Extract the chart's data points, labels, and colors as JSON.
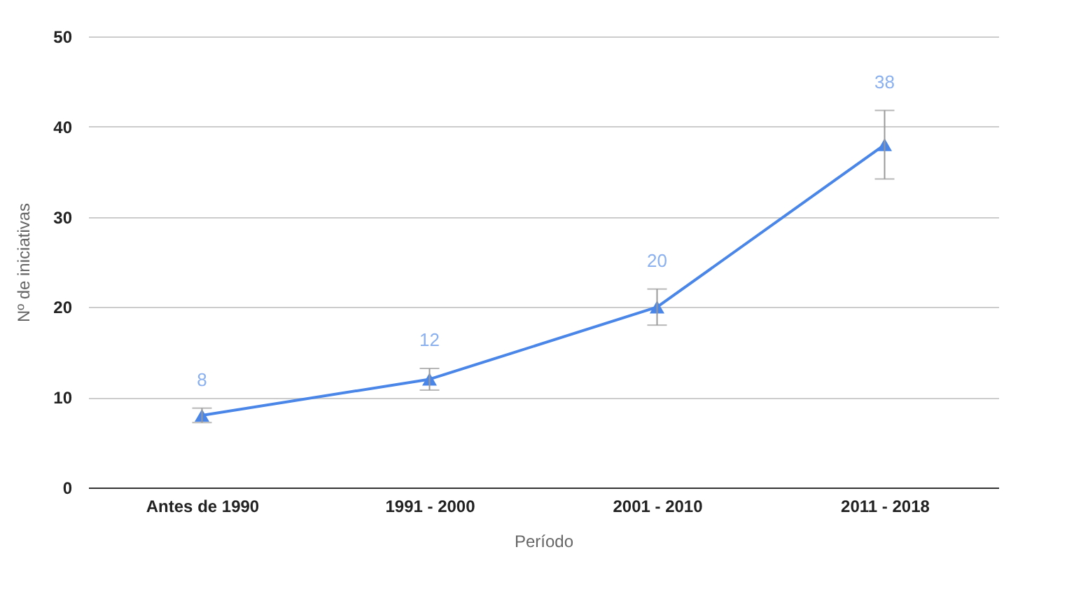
{
  "chart_data": {
    "type": "line",
    "xlabel": "Período",
    "ylabel": "Nº de iniciativas",
    "categories": [
      "Antes de 1990",
      "1991 - 2000",
      "2001 - 2010",
      "2011 - 2018"
    ],
    "series": [
      {
        "color": "#4a86e8",
        "values": [
          8,
          12,
          20,
          38
        ],
        "errors": [
          0.8,
          1.2,
          2,
          3.8
        ]
      }
    ],
    "ylim": [
      0,
      50
    ],
    "yticks": [
      0,
      10,
      20,
      30,
      40,
      50
    ],
    "grid": "y",
    "marker": "triangle",
    "line_style": "solid",
    "data_labels": true,
    "legend": false
  }
}
